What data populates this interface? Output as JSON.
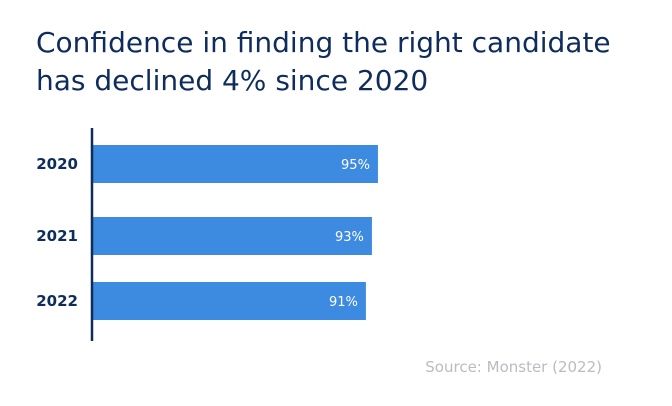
{
  "title_line1": "Confidence in finding the right candidate",
  "title_line2": "has declined 4% since 2020",
  "source": "Source: Monster (2022)",
  "chart_data": {
    "type": "bar",
    "orientation": "horizontal",
    "categories": [
      "2020",
      "2021",
      "2022"
    ],
    "values": [
      95,
      93,
      91
    ],
    "value_labels": [
      "95%",
      "93%",
      "91%"
    ],
    "unit": "%",
    "xlim": [
      0,
      100
    ],
    "grid": false,
    "bar_color": "#3d8be0",
    "axis_color": "#0f2d5c"
  }
}
